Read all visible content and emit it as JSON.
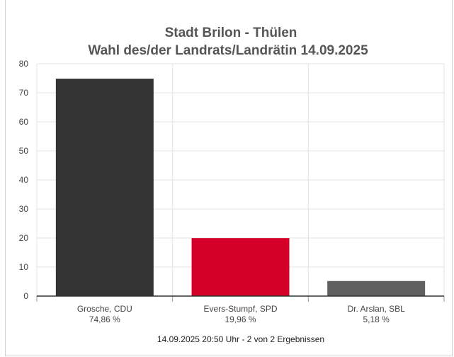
{
  "chart_data": {
    "type": "bar",
    "title": "Stadt Brilon - Thülen",
    "subtitle": "Wahl des/der Landrats/Landrätin 14.09.2025",
    "categories": [
      "Grosche, CDU",
      "Evers-Stumpf, SPD",
      "Dr. Arslan, SBL"
    ],
    "percent_labels": [
      "74,86 %",
      "19,96 %",
      "5,18 %"
    ],
    "values": [
      74.86,
      19.96,
      5.18
    ],
    "colors": [
      "#333333",
      "#d5002a",
      "#5f5f5f"
    ],
    "ylim": [
      0,
      80
    ],
    "yticks": [
      "0",
      "10",
      "20",
      "30",
      "40",
      "50",
      "60",
      "70",
      "80"
    ],
    "grid": true,
    "footer": "14.09.2025 20:50 Uhr - 2 von 2 Ergebnissen"
  }
}
